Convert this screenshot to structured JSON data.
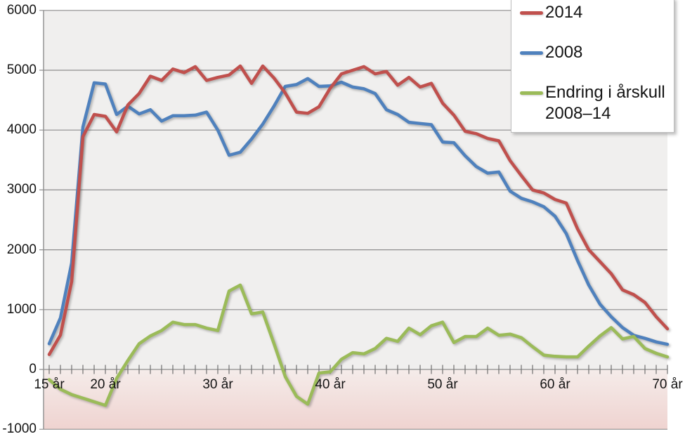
{
  "chart_data": {
    "type": "line",
    "title": "",
    "xlabel": "",
    "ylabel": "",
    "x_unit": "år (age in years)",
    "x": [
      15,
      16,
      17,
      18,
      19,
      20,
      21,
      22,
      23,
      24,
      25,
      26,
      27,
      28,
      29,
      30,
      31,
      32,
      33,
      34,
      35,
      36,
      37,
      38,
      39,
      40,
      41,
      42,
      43,
      44,
      45,
      46,
      47,
      48,
      49,
      50,
      51,
      52,
      53,
      54,
      55,
      56,
      57,
      58,
      59,
      60,
      61,
      62,
      63,
      64,
      65,
      66,
      67,
      68,
      69,
      70
    ],
    "x_tick_labels": [
      {
        "value": 15,
        "label": "15 år"
      },
      {
        "value": 20,
        "label": "20 år"
      },
      {
        "value": 30,
        "label": "30 år"
      },
      {
        "value": 40,
        "label": "40 år"
      },
      {
        "value": 50,
        "label": "50 år"
      },
      {
        "value": 60,
        "label": "60 år"
      },
      {
        "value": 70,
        "label": "70 år"
      }
    ],
    "y_axis": {
      "min": -1000,
      "max": 6000,
      "step": 1000,
      "tick_labels": [
        "6000",
        "5000",
        "4000",
        "3000",
        "2000",
        "1000",
        "0",
        "-1000"
      ]
    },
    "grid": true,
    "legend_position": "top-right",
    "series": [
      {
        "name": "2014",
        "color": "#C0504D",
        "values": [
          250,
          575,
          1470,
          3890,
          4260,
          4230,
          3970,
          4420,
          4610,
          4900,
          4830,
          5020,
          4960,
          5060,
          4830,
          4880,
          4920,
          5070,
          4780,
          5070,
          4870,
          4620,
          4300,
          4280,
          4390,
          4700,
          4940,
          5000,
          5060,
          4940,
          4980,
          4750,
          4880,
          4720,
          4780,
          4450,
          4250,
          3980,
          3940,
          3860,
          3820,
          3490,
          3240,
          3000,
          2950,
          2840,
          2780,
          2350,
          2000,
          1800,
          1600,
          1330,
          1250,
          1120,
          880,
          680
        ]
      },
      {
        "name": "2008",
        "color": "#4F81BD",
        "values": [
          430,
          860,
          1780,
          4050,
          4790,
          4770,
          4260,
          4400,
          4270,
          4340,
          4150,
          4240,
          4240,
          4250,
          4300,
          4000,
          3580,
          3630,
          3850,
          4100,
          4400,
          4730,
          4760,
          4860,
          4730,
          4740,
          4800,
          4720,
          4690,
          4610,
          4340,
          4260,
          4130,
          4110,
          4090,
          3800,
          3790,
          3570,
          3390,
          3280,
          3300,
          2980,
          2860,
          2800,
          2720,
          2560,
          2270,
          1820,
          1410,
          1090,
          880,
          700,
          570,
          520,
          460,
          420
        ]
      },
      {
        "name": "Endring i årskull 2008–14",
        "color": "#9BBB59",
        "values": [
          -170,
          -330,
          -420,
          -480,
          -540,
          -600,
          -150,
          150,
          430,
          560,
          650,
          790,
          750,
          750,
          690,
          650,
          1310,
          1410,
          930,
          960,
          430,
          -120,
          -450,
          -580,
          -60,
          -40,
          170,
          280,
          260,
          350,
          520,
          470,
          690,
          580,
          730,
          790,
          450,
          550,
          550,
          690,
          570,
          590,
          530,
          380,
          240,
          220,
          210,
          210,
          390,
          560,
          700,
          510,
          550,
          350,
          270,
          210
        ]
      }
    ],
    "plot_background": "#F0EFEE",
    "below_zero_band": {
      "from": "#F5ECEA",
      "to": "#EFD3D0"
    },
    "gridline_color": "#8E8E8E",
    "tick_color": "#6F6F6F"
  }
}
